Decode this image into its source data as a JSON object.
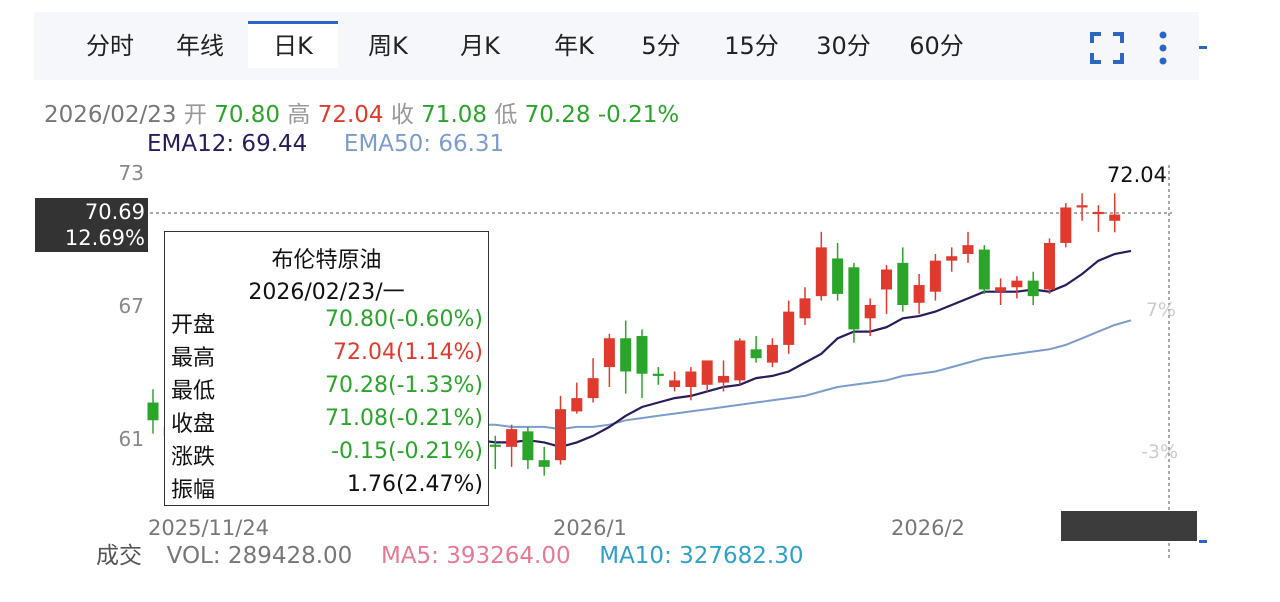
{
  "tabs": [
    {
      "label": "分时",
      "active": false
    },
    {
      "label": "年线",
      "active": false
    },
    {
      "label": "日K",
      "active": true
    },
    {
      "label": "周K",
      "active": false
    },
    {
      "label": "月K",
      "active": false
    },
    {
      "label": "年K",
      "active": false
    },
    {
      "label": "5分",
      "active": false
    },
    {
      "label": "15分",
      "active": false
    },
    {
      "label": "30分",
      "active": false
    },
    {
      "label": "60分",
      "active": false
    }
  ],
  "toolbar": {
    "fullscreen_icon": "fullscreen-icon",
    "more_icon": "more-vertical-icon"
  },
  "quote": {
    "date": "2026/02/23",
    "open_label": "开",
    "open": "70.80",
    "high_label": "高",
    "high": "72.04",
    "close_label": "收",
    "close": "71.08",
    "low_label": "低",
    "low": "70.28",
    "change_pct": "-0.21%"
  },
  "ema": {
    "ema12_label": "EMA12: 69.44",
    "ema50_label": "EMA50: 66.31"
  },
  "crosshair": {
    "price": "70.69",
    "pct": "12.69%"
  },
  "max_label": "72.04",
  "right_labels": {
    "top": "7%",
    "bottom": "-3%"
  },
  "tooltip": {
    "name": "布伦特原油",
    "date": "2026/02/23/一",
    "rows": [
      {
        "label": "开盘",
        "value": "70.80(-0.60%)"
      },
      {
        "label": "最高",
        "value": "72.04(1.14%)"
      },
      {
        "label": "最低",
        "value": "70.28(-1.33%)"
      },
      {
        "label": "收盘",
        "value": "71.08(-0.21%)"
      },
      {
        "label": "涨跌",
        "value": "-0.15(-0.21%)"
      },
      {
        "label": "振幅",
        "value": "1.76(2.47%)"
      }
    ]
  },
  "volume": {
    "label": "成交",
    "vol": "VOL: 289428.00",
    "ma5": "MA5: 393264.00",
    "ma10": "MA10: 327682.30"
  },
  "colors": {
    "up": "#e03a2f",
    "down": "#2aa52a",
    "ema12": "#2a1b5c",
    "ema50": "#7c9ccc",
    "ma5": "#e67a95",
    "ma10": "#2fa0c8",
    "accent": "#2b66c4"
  },
  "chart_data": {
    "type": "candlestick",
    "title": "布伦特原油",
    "y_ticks": [
      73,
      67,
      61
    ],
    "x_labels": [
      "2025/11/24",
      "2026/1",
      "2026/2"
    ],
    "ylim": [
      58.5,
      74.5
    ],
    "candles": [
      {
        "o": 62.6,
        "h": 63.2,
        "l": 61.2,
        "c": 61.8
      },
      {
        "o": 61.5,
        "h": 61.9,
        "l": 60.6,
        "c": 61.1
      },
      {
        "o": 61.0,
        "h": 61.6,
        "l": 60.2,
        "c": 60.6
      },
      {
        "o": 60.9,
        "h": 61.4,
        "l": 60.0,
        "c": 60.3
      },
      {
        "o": 60.7,
        "h": 61.2,
        "l": 60.1,
        "c": 60.8
      },
      {
        "o": 60.6,
        "h": 61.1,
        "l": 59.9,
        "c": 60.2
      },
      {
        "o": 60.3,
        "h": 60.9,
        "l": 59.5,
        "c": 60.6
      },
      {
        "o": 60.6,
        "h": 61.3,
        "l": 60.0,
        "c": 61.1
      },
      {
        "o": 61.1,
        "h": 61.8,
        "l": 60.6,
        "c": 61.4
      },
      {
        "o": 61.4,
        "h": 62.0,
        "l": 60.8,
        "c": 61.2
      },
      {
        "o": 61.3,
        "h": 61.6,
        "l": 60.2,
        "c": 60.5
      },
      {
        "o": 60.6,
        "h": 61.3,
        "l": 60.2,
        "c": 61.0
      },
      {
        "o": 61.1,
        "h": 61.6,
        "l": 60.6,
        "c": 61.5
      },
      {
        "o": 61.5,
        "h": 61.7,
        "l": 61.0,
        "c": 61.4
      },
      {
        "o": 61.4,
        "h": 61.9,
        "l": 60.6,
        "c": 60.9
      },
      {
        "o": 61.6,
        "h": 61.8,
        "l": 59.6,
        "c": 59.7
      },
      {
        "o": 60.3,
        "h": 61.5,
        "l": 60.1,
        "c": 61.0
      },
      {
        "o": 60.9,
        "h": 61.3,
        "l": 60.3,
        "c": 60.8
      },
      {
        "o": 60.7,
        "h": 61.2,
        "l": 60.4,
        "c": 60.9
      },
      {
        "o": 60.8,
        "h": 61.1,
        "l": 59.7,
        "c": 60.8
      },
      {
        "o": 61.0,
        "h": 61.5,
        "l": 60.3,
        "c": 60.5
      },
      {
        "o": 60.7,
        "h": 61.1,
        "l": 59.6,
        "c": 60.6
      },
      {
        "o": 60.6,
        "h": 61.6,
        "l": 59.7,
        "c": 61.4
      },
      {
        "o": 61.3,
        "h": 61.5,
        "l": 59.6,
        "c": 60.0
      },
      {
        "o": 60.0,
        "h": 60.6,
        "l": 59.3,
        "c": 59.7
      },
      {
        "o": 60.0,
        "h": 62.9,
        "l": 59.8,
        "c": 62.3
      },
      {
        "o": 62.2,
        "h": 63.5,
        "l": 62.1,
        "c": 62.8
      },
      {
        "o": 62.8,
        "h": 64.6,
        "l": 62.6,
        "c": 63.7
      },
      {
        "o": 64.2,
        "h": 65.7,
        "l": 63.3,
        "c": 65.5
      },
      {
        "o": 65.5,
        "h": 66.3,
        "l": 63.0,
        "c": 64.0
      },
      {
        "o": 65.6,
        "h": 65.9,
        "l": 62.8,
        "c": 63.9
      },
      {
        "o": 63.9,
        "h": 64.2,
        "l": 63.4,
        "c": 63.8
      },
      {
        "o": 63.3,
        "h": 64.0,
        "l": 63.1,
        "c": 63.6
      },
      {
        "o": 63.3,
        "h": 64.2,
        "l": 62.7,
        "c": 64.0
      },
      {
        "o": 63.4,
        "h": 64.4,
        "l": 63.1,
        "c": 64.5
      },
      {
        "o": 63.5,
        "h": 64.5,
        "l": 63.1,
        "c": 63.8
      },
      {
        "o": 63.6,
        "h": 65.5,
        "l": 63.4,
        "c": 65.4
      },
      {
        "o": 65.0,
        "h": 65.6,
        "l": 64.4,
        "c": 64.6
      },
      {
        "o": 64.4,
        "h": 65.5,
        "l": 64.2,
        "c": 65.2
      },
      {
        "o": 65.2,
        "h": 67.2,
        "l": 64.8,
        "c": 66.7
      },
      {
        "o": 66.4,
        "h": 67.8,
        "l": 66.1,
        "c": 67.3
      },
      {
        "o": 67.4,
        "h": 70.3,
        "l": 67.2,
        "c": 69.6
      },
      {
        "o": 69.1,
        "h": 69.8,
        "l": 67.2,
        "c": 67.5
      },
      {
        "o": 68.7,
        "h": 68.9,
        "l": 65.3,
        "c": 65.9
      },
      {
        "o": 66.4,
        "h": 67.3,
        "l": 65.6,
        "c": 67.0
      },
      {
        "o": 67.7,
        "h": 68.8,
        "l": 66.6,
        "c": 68.6
      },
      {
        "o": 68.9,
        "h": 69.6,
        "l": 66.7,
        "c": 67.0
      },
      {
        "o": 67.1,
        "h": 68.4,
        "l": 66.6,
        "c": 67.9
      },
      {
        "o": 67.6,
        "h": 69.3,
        "l": 67.2,
        "c": 69.0
      },
      {
        "o": 69.0,
        "h": 69.6,
        "l": 68.5,
        "c": 69.2
      },
      {
        "o": 69.3,
        "h": 70.3,
        "l": 68.9,
        "c": 69.7
      },
      {
        "o": 69.5,
        "h": 69.7,
        "l": 67.5,
        "c": 67.7
      },
      {
        "o": 67.6,
        "h": 68.2,
        "l": 67.0,
        "c": 67.8
      },
      {
        "o": 67.8,
        "h": 68.3,
        "l": 67.3,
        "c": 68.1
      },
      {
        "o": 68.1,
        "h": 68.5,
        "l": 67.0,
        "c": 67.4
      },
      {
        "o": 67.7,
        "h": 70.0,
        "l": 67.5,
        "c": 69.8
      },
      {
        "o": 69.8,
        "h": 71.6,
        "l": 69.6,
        "c": 71.4
      },
      {
        "o": 71.4,
        "h": 72.04,
        "l": 70.8,
        "c": 71.5
      },
      {
        "o": 71.1,
        "h": 71.5,
        "l": 70.3,
        "c": 71.2
      },
      {
        "o": 70.8,
        "h": 72.04,
        "l": 70.28,
        "c": 71.08
      }
    ],
    "ema12": [
      61.6,
      61.5,
      61.3,
      61.2,
      61.2,
      61.1,
      61.0,
      61.0,
      61.1,
      61.1,
      61.1,
      61.0,
      61.1,
      61.1,
      61.1,
      60.9,
      60.9,
      60.9,
      60.9,
      60.9,
      60.8,
      60.8,
      60.9,
      60.8,
      60.6,
      60.8,
      61.1,
      61.5,
      62.0,
      62.4,
      62.6,
      62.8,
      62.9,
      63.1,
      63.3,
      63.4,
      63.7,
      63.8,
      64.0,
      64.4,
      64.8,
      65.5,
      65.8,
      65.8,
      66.0,
      66.4,
      66.5,
      66.7,
      67.0,
      67.3,
      67.6,
      67.6,
      67.6,
      67.7,
      67.6,
      67.9,
      68.4,
      69.0,
      69.3,
      69.44
    ],
    "ema50": [
      62.3,
      62.2,
      62.2,
      62.1,
      62.1,
      62.0,
      62.0,
      61.9,
      61.9,
      61.9,
      61.8,
      61.8,
      61.8,
      61.8,
      61.7,
      61.7,
      61.7,
      61.6,
      61.6,
      61.6,
      61.6,
      61.5,
      61.5,
      61.5,
      61.4,
      61.5,
      61.5,
      61.6,
      61.8,
      61.9,
      62.0,
      62.1,
      62.2,
      62.3,
      62.4,
      62.5,
      62.6,
      62.7,
      62.8,
      62.9,
      63.1,
      63.3,
      63.4,
      63.5,
      63.6,
      63.8,
      63.9,
      64.0,
      64.2,
      64.4,
      64.6,
      64.7,
      64.8,
      64.9,
      65.0,
      65.2,
      65.5,
      65.8,
      66.1,
      66.31
    ]
  }
}
